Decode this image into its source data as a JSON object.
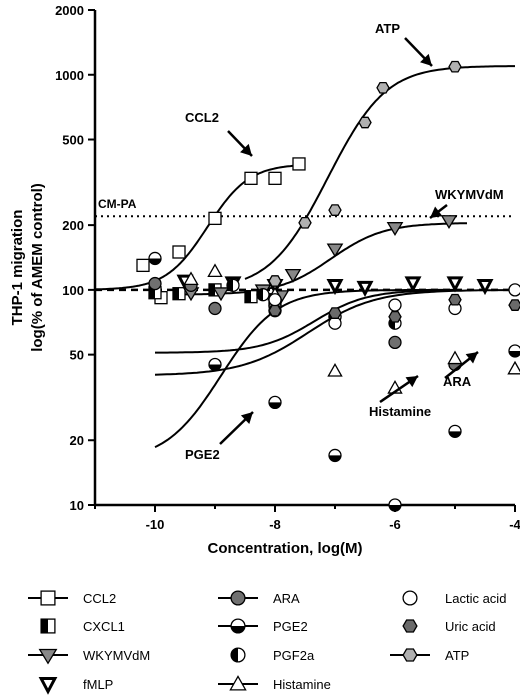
{
  "chart_data": {
    "type": "scatter",
    "xlabel": "Concentration, log(M)",
    "ylabel_line1": "THP-1 migration",
    "ylabel_line2": "log(% of AMEM control)",
    "yscale": "log",
    "xlim": [
      -11,
      -4
    ],
    "ylim": [
      10,
      2000
    ],
    "xticks": [
      {
        "v": -10,
        "label": "-10"
      },
      {
        "v": -8,
        "label": "-8"
      },
      {
        "v": -6,
        "label": "-6"
      },
      {
        "v": -4,
        "label": "-4"
      }
    ],
    "yticks": [
      {
        "v": 10,
        "label": "10"
      },
      {
        "v": 20,
        "label": "20"
      },
      {
        "v": 50,
        "label": "50"
      },
      {
        "v": 100,
        "label": "100"
      },
      {
        "v": 200,
        "label": "200"
      },
      {
        "v": 500,
        "label": "500"
      },
      {
        "v": 1000,
        "label": "1000"
      },
      {
        "v": 2000,
        "label": "2000"
      }
    ],
    "reference_lines": [
      {
        "y": 100,
        "style": "dashed",
        "label": ""
      },
      {
        "y": 220,
        "style": "dotted",
        "label": "CM-PA"
      }
    ],
    "series": [
      {
        "name": "CCL2",
        "marker": "square-open",
        "x": [
          -10.2,
          -9.9,
          -9.6,
          -9.0,
          -8.4,
          -8.0,
          -7.6
        ],
        "y": [
          130,
          92,
          150,
          215,
          330,
          330,
          385
        ],
        "fit": {
          "bottom": 100,
          "top": 385,
          "ec50": -8.9,
          "hill": 1.3,
          "x_from": -11,
          "x_to": -7.6
        },
        "annotation": {
          "text": "CCL2"
        }
      },
      {
        "name": "CXCL1",
        "marker": "square-half",
        "x": [
          -10.0,
          -9.6,
          -9.0,
          -8.4,
          -8.0
        ],
        "y": [
          97,
          96,
          100,
          93,
          90
        ]
      },
      {
        "name": "WKYMVdM",
        "marker": "tri-down-filled",
        "x": [
          -9.4,
          -8.9,
          -8.2,
          -7.9,
          -7.7,
          -7.0,
          -6.0,
          -5.1
        ],
        "y": [
          97,
          97,
          100,
          94,
          118,
          155,
          195,
          210
        ],
        "fit": {
          "bottom": 95,
          "top": 205,
          "ec50": -6.9,
          "hill": 1.0,
          "x_from": -9.5,
          "x_to": -4.8
        },
        "annotation": {
          "text": "WKYMVdM"
        }
      },
      {
        "name": "fMLP",
        "marker": "tri-down-open-bold",
        "x": [
          -9.5,
          -8.7,
          -8.0,
          -7.0,
          -6.5,
          -5.7,
          -5.0,
          -4.5
        ],
        "y": [
          110,
          108,
          105,
          105,
          103,
          108,
          108,
          105
        ]
      },
      {
        "name": "ARA",
        "marker": "circle-gray",
        "x": [
          -10.0,
          -9.4,
          -9.0,
          -8.0,
          -7.0,
          -6.0,
          -5.0
        ],
        "y": [
          107,
          105,
          82,
          84,
          75,
          57,
          45
        ],
        "fit": {
          "bottom": 51,
          "top": 100,
          "ec50": -7.2,
          "hill": 1.0,
          "x_from": -10,
          "x_to": -5
        },
        "annotation": {
          "text": "ARA"
        }
      },
      {
        "name": "PGE2",
        "marker": "circle-halfbottom",
        "x": [
          -10.0,
          -9.0,
          -8.0,
          -7.0,
          -6.0,
          -5.0,
          -4.0
        ],
        "y": [
          140,
          45,
          30,
          17,
          10,
          22,
          52
        ],
        "fit": {
          "bottom": 16,
          "top": 100,
          "ec50": -8.5,
          "hill": 1.0,
          "x_from": -10,
          "x_to": -5
        },
        "annotation": {
          "text": "PGE2"
        }
      },
      {
        "name": "PGF2a",
        "marker": "circle-halfleft",
        "x": [
          -8.7,
          -8.2,
          -8.0,
          -7.0,
          -6.0
        ],
        "y": [
          105,
          95,
          80,
          75,
          70
        ]
      },
      {
        "name": "Histamine",
        "marker": "tri-up-open",
        "x": [
          -9.4,
          -9.0,
          -8.0,
          -7.0,
          -6.0,
          -5.0,
          -4.0
        ],
        "y": [
          112,
          122,
          95,
          42,
          35,
          48,
          43
        ],
        "fit": {
          "bottom": 40,
          "top": 100,
          "ec50": -7.2,
          "hill": 0.8,
          "x_from": -10,
          "x_to": -4
        },
        "annotation": {
          "text": "Histamine"
        }
      },
      {
        "name": "Lactic acid",
        "marker": "circle-open",
        "x": [
          -8.0,
          -7.0,
          -6.0,
          -5.0,
          -4.0
        ],
        "y": [
          90,
          70,
          85,
          82,
          100
        ]
      },
      {
        "name": "Uric acid",
        "marker": "hexagon-gray",
        "x": [
          -8.0,
          -7.0,
          -6.0,
          -5.0,
          -4.0
        ],
        "y": [
          80,
          78,
          75,
          90,
          85
        ]
      },
      {
        "name": "ATP",
        "marker": "hexagon-light",
        "x": [
          -8.0,
          -7.5,
          -7.0,
          -6.5,
          -6.2,
          -5.0
        ],
        "y": [
          110,
          205,
          235,
          600,
          870,
          1090
        ],
        "fit": {
          "bottom": 100,
          "top": 1100,
          "ec50": -6.6,
          "hill": 1.0,
          "x_from": -8.5,
          "x_to": -4.0
        },
        "annotation": {
          "text": "ATP"
        }
      }
    ]
  }
}
